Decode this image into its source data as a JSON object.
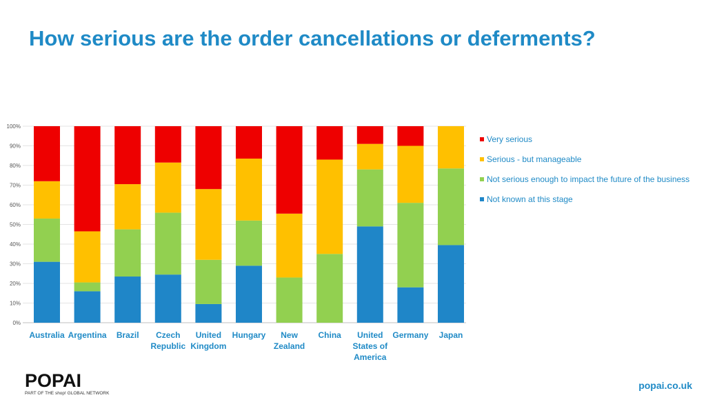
{
  "title": "How serious are the order cancellations or deferments?",
  "colors": {
    "very_serious": "#ee0000",
    "manageable": "#ffc000",
    "not_serious": "#92d050",
    "not_known": "#1f86c8",
    "text_accent": "#1f8ac6",
    "axis_text": "#555555",
    "gridline": "#e3e3e3"
  },
  "chart_data": {
    "type": "bar",
    "stacked": true,
    "percent": true,
    "categories": [
      [
        "Australia"
      ],
      [
        "Argentina"
      ],
      [
        "Brazil"
      ],
      [
        "Czech",
        "Republic"
      ],
      [
        "United",
        "Kingdom"
      ],
      [
        "Hungary"
      ],
      [
        "New",
        "Zealand"
      ],
      [
        "China"
      ],
      [
        "United",
        "States of",
        "America"
      ],
      [
        "Germany"
      ],
      [
        "Japan"
      ]
    ],
    "series": [
      {
        "name": "Not known at this stage",
        "color": "#1f86c8",
        "values": [
          31,
          16,
          23.5,
          24.5,
          9.5,
          29,
          0,
          0,
          49,
          18,
          39.5
        ]
      },
      {
        "name": "Not serious enough to impact the future of the business",
        "color": "#92d050",
        "values": [
          22,
          4.5,
          24,
          31.5,
          22.5,
          23,
          23,
          35,
          29,
          43,
          39
        ]
      },
      {
        "name": "Serious - but manageable",
        "color": "#ffc000",
        "values": [
          19,
          26,
          23,
          25.5,
          36,
          31.5,
          32.5,
          48,
          13,
          29,
          21.5
        ]
      },
      {
        "name": "Very serious",
        "color": "#ee0000",
        "values": [
          28,
          53.5,
          29.5,
          18.5,
          32,
          16.5,
          44.5,
          17,
          9,
          10,
          0
        ]
      }
    ],
    "legend_order": [
      "Very serious",
      "Serious - but manageable",
      "Not serious enough to impact the future of the business",
      "Not known at this stage"
    ],
    "y_ticks": [
      "0%",
      "10%",
      "20%",
      "30%",
      "40%",
      "50%",
      "60%",
      "70%",
      "80%",
      "90%",
      "100%"
    ],
    "ylim": [
      0,
      100
    ],
    "grid": true,
    "legend_position": "right"
  },
  "footer": {
    "logo_text": "POPAI",
    "tagline": "PART OF THE shop! GLOBAL NETWORK",
    "website": "popai.co.uk"
  }
}
